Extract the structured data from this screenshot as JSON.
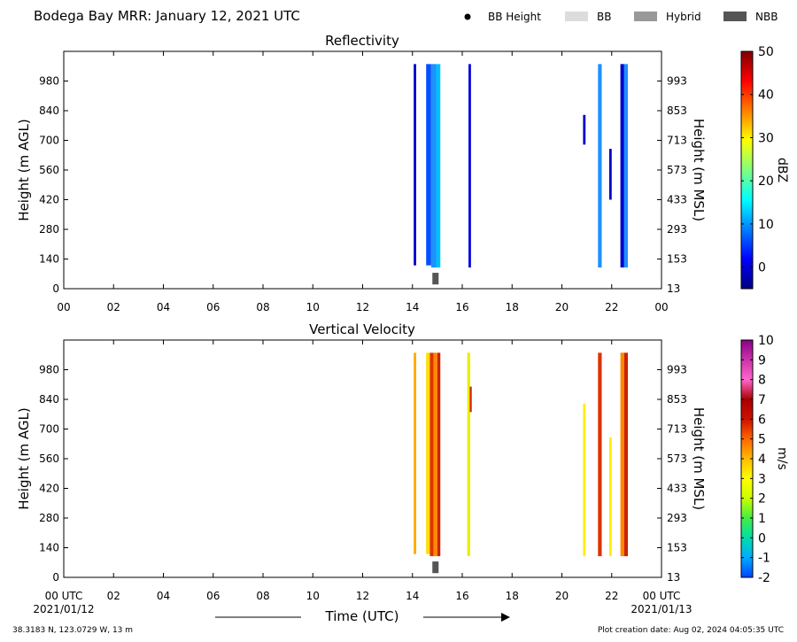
{
  "page": {
    "title": "Bodega Bay MRR:  January 12, 2021 UTC",
    "legend": [
      {
        "label": "BB Height",
        "kind": "dot",
        "color": "#000000"
      },
      {
        "label": "BB",
        "kind": "bar",
        "color": "#dcdcdc"
      },
      {
        "label": "Hybrid",
        "kind": "bar",
        "color": "#999999"
      },
      {
        "label": "NBB",
        "kind": "bar",
        "color": "#555555"
      }
    ],
    "footer_left": "38.3183 N, 123.0729 W, 13 m",
    "footer_right": "Plot creation date: Aug 02, 2024 04:05:35 UTC",
    "time_label": "Time (UTC)",
    "start_date": "2021/01/12",
    "end_date": "2021/01/13"
  },
  "chart_data": [
    {
      "type": "heatmap",
      "title": "Reflectivity",
      "ylabel": "Height (m AGL)",
      "ylabel_right": "Height (m MSL)",
      "colorbar_label": "dBZ",
      "xlim": [
        0,
        24
      ],
      "ylim": [
        0,
        1120
      ],
      "x_ticks": [
        "00",
        "02",
        "04",
        "06",
        "08",
        "10",
        "12",
        "14",
        "16",
        "18",
        "20",
        "22",
        "00"
      ],
      "y_ticks": [
        0,
        140,
        280,
        420,
        560,
        700,
        840,
        980
      ],
      "y_ticks_right": [
        "13",
        "153",
        "293",
        "433",
        "573",
        "713",
        "853",
        "993"
      ],
      "colorbar_range": [
        -5,
        50
      ],
      "colorbar_ticks": [
        "0",
        "10",
        "20",
        "30",
        "40",
        "50"
      ],
      "colorbar_stops": [
        "#00007f",
        "#0000ff",
        "#007fff",
        "#00ffff",
        "#7fff7f",
        "#ffff00",
        "#ff7f00",
        "#ff0000",
        "#7f0000"
      ],
      "strips": [
        {
          "t0": 14.05,
          "t1": 14.15,
          "h0": 110,
          "h1": 1060,
          "color": "#0000cc"
        },
        {
          "t0": 14.55,
          "t1": 14.75,
          "h0": 110,
          "h1": 1060,
          "color": "#0050ff"
        },
        {
          "t0": 14.75,
          "t1": 14.95,
          "h0": 100,
          "h1": 1060,
          "color": "#1e90ff"
        },
        {
          "t0": 14.95,
          "t1": 15.12,
          "h0": 100,
          "h1": 1060,
          "color": "#00bfff"
        },
        {
          "t0": 16.25,
          "t1": 16.35,
          "h0": 100,
          "h1": 1060,
          "color": "#0000dd"
        },
        {
          "t0": 20.85,
          "t1": 20.95,
          "h0": 680,
          "h1": 820,
          "color": "#0000cc"
        },
        {
          "t0": 21.45,
          "t1": 21.6,
          "h0": 100,
          "h1": 1060,
          "color": "#1e90ff"
        },
        {
          "t0": 21.9,
          "t1": 22.0,
          "h0": 420,
          "h1": 660,
          "color": "#0000cc"
        },
        {
          "t0": 22.35,
          "t1": 22.5,
          "h0": 100,
          "h1": 1060,
          "color": "#0000cc"
        },
        {
          "t0": 22.5,
          "t1": 22.65,
          "h0": 100,
          "h1": 1060,
          "color": "#1e90ff"
        }
      ],
      "bb_markers": [
        {
          "t0": 14.8,
          "t1": 15.05,
          "h0": 20,
          "h1": 75,
          "color": "#555555"
        }
      ]
    },
    {
      "type": "heatmap",
      "title": "Vertical Velocity",
      "ylabel": "Height (m AGL)",
      "ylabel_right": "Height (m MSL)",
      "colorbar_label": "m/s",
      "xlim": [
        0,
        24
      ],
      "ylim": [
        0,
        1120
      ],
      "x_ticks": [
        "00 UTC",
        "02",
        "04",
        "06",
        "08",
        "10",
        "12",
        "14",
        "16",
        "18",
        "20",
        "22",
        "00 UTC"
      ],
      "y_ticks": [
        0,
        140,
        280,
        420,
        560,
        700,
        840,
        980
      ],
      "y_ticks_right": [
        "13",
        "153",
        "293",
        "433",
        "573",
        "713",
        "853",
        "993"
      ],
      "colorbar_range": [
        -2,
        10
      ],
      "colorbar_ticks": [
        "-2",
        "-1",
        "0",
        "1",
        "2",
        "3",
        "4",
        "5",
        "6",
        "7",
        "8",
        "9",
        "10"
      ],
      "colorbar_stops": [
        "#0044ff",
        "#00aaff",
        "#00ddaa",
        "#44ee44",
        "#ccff00",
        "#ffff00",
        "#ffbb00",
        "#ff6600",
        "#cc1100",
        "#aa0000",
        "#ff66cc",
        "#cc33aa",
        "#880088"
      ],
      "strips": [
        {
          "t0": 14.05,
          "t1": 14.15,
          "h0": 110,
          "h1": 1060,
          "color": "#ffaa00"
        },
        {
          "t0": 14.55,
          "t1": 14.7,
          "h0": 110,
          "h1": 1060,
          "color": "#ffdd00"
        },
        {
          "t0": 14.7,
          "t1": 14.85,
          "h0": 100,
          "h1": 1060,
          "color": "#dd3300"
        },
        {
          "t0": 14.85,
          "t1": 15.0,
          "h0": 100,
          "h1": 1060,
          "color": "#ff8800"
        },
        {
          "t0": 15.0,
          "t1": 15.12,
          "h0": 100,
          "h1": 1060,
          "color": "#cc2200"
        },
        {
          "t0": 16.2,
          "t1": 16.32,
          "h0": 100,
          "h1": 1060,
          "color": "#eeee00"
        },
        {
          "t0": 16.3,
          "t1": 16.38,
          "h0": 780,
          "h1": 900,
          "color": "#cc2200"
        },
        {
          "t0": 20.85,
          "t1": 20.95,
          "h0": 100,
          "h1": 820,
          "color": "#ffee00"
        },
        {
          "t0": 21.45,
          "t1": 21.6,
          "h0": 100,
          "h1": 1060,
          "color": "#dd3300"
        },
        {
          "t0": 21.9,
          "t1": 22.0,
          "h0": 100,
          "h1": 660,
          "color": "#ffee00"
        },
        {
          "t0": 22.35,
          "t1": 22.5,
          "h0": 100,
          "h1": 1060,
          "color": "#ff8800"
        },
        {
          "t0": 22.5,
          "t1": 22.65,
          "h0": 100,
          "h1": 1060,
          "color": "#cc2200"
        }
      ],
      "bb_markers": [
        {
          "t0": 14.8,
          "t1": 15.05,
          "h0": 20,
          "h1": 75,
          "color": "#555555"
        }
      ]
    }
  ]
}
